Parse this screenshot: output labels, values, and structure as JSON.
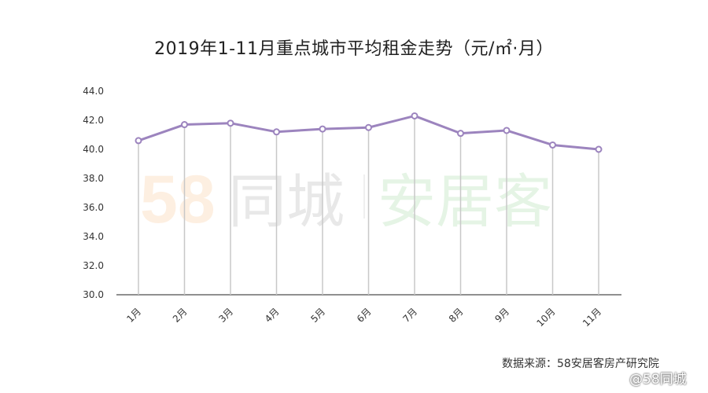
{
  "title": "2019年1-11月重点城市平均租金走势（元/㎡·月）",
  "watermark": {
    "brand_number": "58",
    "brand_name": "同城",
    "product": "安居客"
  },
  "source_note": "数据来源：58安居客房产研究院",
  "corner_mark": "@58同城",
  "colors": {
    "line": "#9c84be",
    "vline": "#c8c8c8",
    "axis": "#6b6b6b"
  },
  "chart_data": {
    "type": "line",
    "title": "2019年1-11月重点城市平均租金走势（元/㎡·月）",
    "xlabel": "",
    "ylabel": "",
    "categories": [
      "1月",
      "2月",
      "3月",
      "4月",
      "5月",
      "6月",
      "7月",
      "8月",
      "9月",
      "10月",
      "11月"
    ],
    "series": [
      {
        "values": [
          40.6,
          41.7,
          41.8,
          41.2,
          41.4,
          41.5,
          42.3,
          41.1,
          41.3,
          40.3,
          40.0
        ]
      }
    ],
    "ylim": [
      30.0,
      44.0
    ],
    "yticks": [
      "30.0",
      "32.0",
      "34.0",
      "36.0",
      "38.0",
      "40.0",
      "42.0",
      "44.0"
    ],
    "grid": false,
    "vertical_drop_lines": true,
    "legend": "none"
  }
}
